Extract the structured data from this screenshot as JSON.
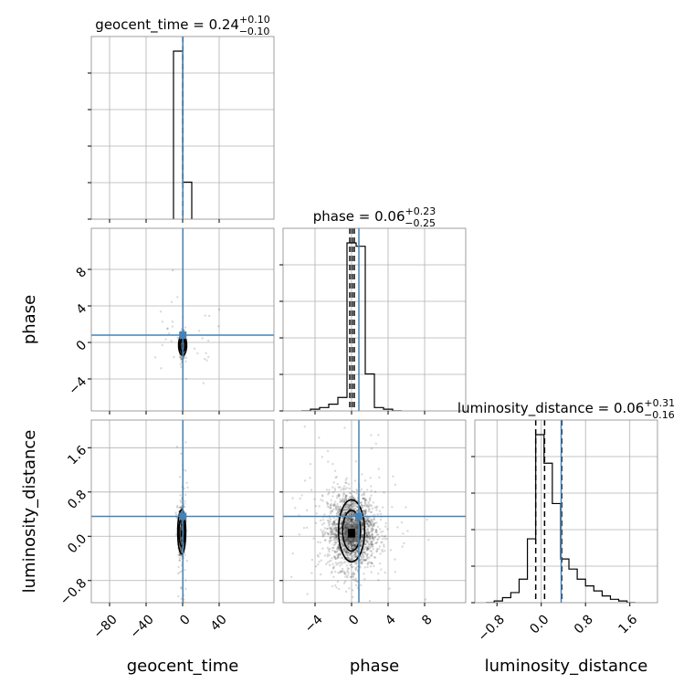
{
  "chart_data": {
    "type": "corner",
    "parameters": [
      "geocent_time",
      "phase",
      "luminosity_distance"
    ],
    "truths": {
      "geocent_time": 0.24,
      "phase": 0.8,
      "luminosity_distance": 0.36
    },
    "truth_color": "#4682b4",
    "ranges": {
      "geocent_time": [
        -100,
        100
      ],
      "phase": [
        -7.5,
        12.5
      ],
      "luminosity_distance": [
        -1.2,
        2.1
      ]
    },
    "ticks": {
      "geocent_time": {
        "values": [
          -80,
          -40,
          0,
          40
        ],
        "labels": [
          "−80",
          "−40",
          "0",
          "40"
        ]
      },
      "phase": {
        "values": [
          -4,
          0,
          4,
          8
        ],
        "labels": [
          "−4",
          "0",
          "4",
          "8"
        ]
      },
      "luminosity_distance": {
        "values": [
          -0.8,
          0.0,
          0.8,
          1.6
        ],
        "labels": [
          "−0.8",
          "0.0",
          "0.8",
          "1.6"
        ]
      }
    },
    "titles": [
      {
        "param": "geocent_time",
        "median": "0.24",
        "plus": "+0.10",
        "minus": "−0.10"
      },
      {
        "param": "phase",
        "median": "0.06",
        "plus": "+0.23",
        "minus": "−0.25"
      },
      {
        "param": "luminosity_distance",
        "median": "0.06",
        "plus": "+0.31",
        "minus": "−0.16"
      }
    ],
    "histograms": {
      "geocent_time": {
        "bin_edges": [
          -10,
          0,
          10
        ],
        "counts": [
          1.0,
          0.22
        ],
        "quantiles": [
          0.14,
          0.24,
          0.34
        ]
      },
      "phase": {
        "bin_edges": [
          -5.5,
          -4.5,
          -3.5,
          -2.5,
          -1.5,
          -0.5,
          0.5,
          1.5,
          2.5,
          3.5,
          4.5,
          5.5
        ],
        "counts": [
          0.0,
          0.01,
          0.02,
          0.04,
          0.08,
          1.0,
          0.98,
          0.22,
          0.02,
          0.01,
          0.0
        ],
        "quantiles": [
          -0.19,
          0.06,
          0.29
        ]
      },
      "luminosity_distance": {
        "bin_edges": [
          -1.0,
          -0.85,
          -0.7,
          -0.55,
          -0.4,
          -0.25,
          -0.1,
          0.05,
          0.2,
          0.35,
          0.5,
          0.65,
          0.8,
          0.95,
          1.1,
          1.25,
          1.4,
          1.55,
          1.7
        ],
        "counts": [
          0.0,
          0.01,
          0.03,
          0.06,
          0.14,
          0.38,
          1.0,
          0.83,
          0.59,
          0.26,
          0.2,
          0.14,
          0.1,
          0.07,
          0.04,
          0.02,
          0.01,
          0.0
        ],
        "quantiles": [
          -0.1,
          0.06,
          0.37
        ]
      }
    },
    "hist_grid": {
      "y_fractions": [
        0.2,
        0.4,
        0.6,
        0.8
      ]
    },
    "scatter": [
      {
        "x_param": "geocent_time",
        "y_param": "phase",
        "n_points": 360,
        "center": [
          0,
          -0.3
        ],
        "spread": [
          1.5,
          0.7
        ],
        "outliers": {
          "n": 40,
          "spread": [
            25,
            2.5
          ]
        },
        "contours": [
          [
            -3.5,
            -0.1,
            4.5,
            -0.35
          ],
          [
            -1.5,
            0.0,
            1.5,
            -0.2
          ]
        ]
      },
      {
        "x_param": "geocent_time",
        "y_param": "luminosity_distance",
        "n_points": 380,
        "center": [
          -1,
          0.08
        ],
        "spread": [
          1.5,
          0.25
        ],
        "outliers": {
          "n": 60,
          "spread": [
            3,
            0.8
          ]
        },
        "contours": [
          [
            -8,
            0.25,
            -5,
            0.4
          ],
          [
            -5,
            0.15,
            -3,
            0.25
          ]
        ]
      },
      {
        "x_param": "phase",
        "y_param": "luminosity_distance",
        "n_points": 1800,
        "center": [
          0,
          0.1
        ],
        "spread": [
          1.3,
          0.35
        ],
        "outliers": {
          "n": 120,
          "spread": [
            3.5,
            0.9
          ]
        },
        "contours": [
          [
            -1.0,
            0.35,
            1.1,
            0.45
          ],
          [
            -0.6,
            0.2,
            0.7,
            0.3
          ]
        ]
      }
    ]
  }
}
